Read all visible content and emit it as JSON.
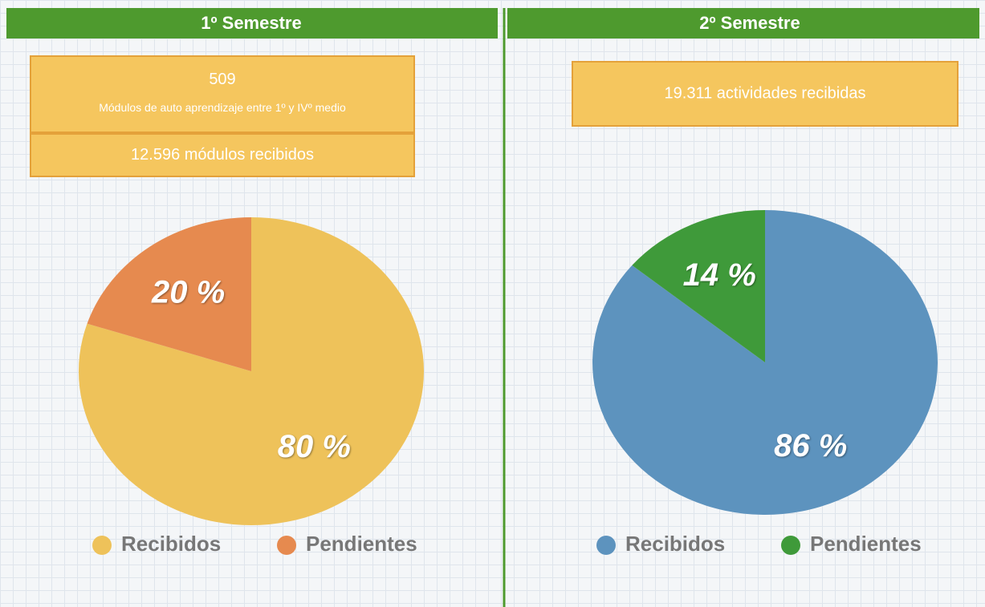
{
  "chart_data": [
    {
      "type": "pie",
      "title": "1º Semestre",
      "annotations": [
        [
          "509",
          "Módulos de auto aprendizaje entre 1º y IVº medio"
        ],
        [
          "12.596 módulos recibidos"
        ]
      ],
      "categories": [
        "Recibidos",
        "Pendientes"
      ],
      "values": [
        80,
        20
      ],
      "value_labels": [
        "80 %",
        "20 %"
      ],
      "colors": [
        "#eec25a",
        "#e68a4f"
      ]
    },
    {
      "type": "pie",
      "title": "2º Semestre",
      "annotations": [
        [
          "19.311 actividades recibidas"
        ]
      ],
      "categories": [
        "Recibidos",
        "Pendientes"
      ],
      "values": [
        86,
        14
      ],
      "value_labels": [
        "86 %",
        "14 %"
      ],
      "colors": [
        "#5d93be",
        "#3f9a3a"
      ]
    }
  ]
}
